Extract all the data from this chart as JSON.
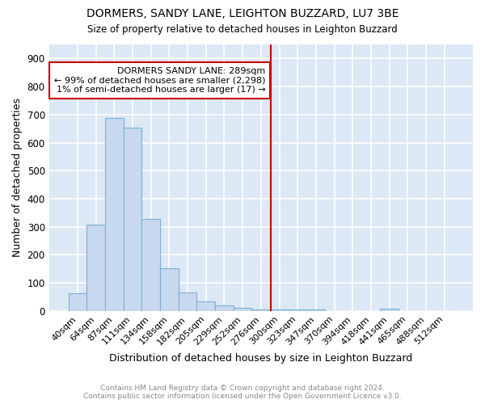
{
  "title": "DORMERS, SANDY LANE, LEIGHTON BUZZARD, LU7 3BE",
  "subtitle": "Size of property relative to detached houses in Leighton Buzzard",
  "xlabel": "Distribution of detached houses by size in Leighton Buzzard",
  "ylabel": "Number of detached properties",
  "footer": "Contains HM Land Registry data © Crown copyright and database right 2024.\nContains public sector information licensed under the Open Government Licence v3.0.",
  "bar_labels": [
    "40sqm",
    "64sqm",
    "87sqm",
    "111sqm",
    "134sqm",
    "158sqm",
    "182sqm",
    "205sqm",
    "229sqm",
    "252sqm",
    "276sqm",
    "300sqm",
    "323sqm",
    "347sqm",
    "370sqm",
    "394sqm",
    "418sqm",
    "441sqm",
    "465sqm",
    "488sqm",
    "512sqm"
  ],
  "bar_values": [
    62,
    309,
    687,
    654,
    327,
    151,
    65,
    33,
    20,
    11,
    5,
    4,
    4,
    4,
    0,
    0,
    0,
    8,
    0,
    0,
    0
  ],
  "bar_color": "#c8d8ee",
  "bar_edge_color": "#7ab0d8",
  "background_color": "#dce8f5",
  "grid_color": "#ffffff",
  "annotation_text": "DORMERS SANDY LANE: 289sqm\n← 99% of detached houses are smaller (2,298)\n1% of semi-detached houses are larger (17) →",
  "annotation_box_color": "#cc0000",
  "ylim": [
    0,
    950
  ],
  "yticks": [
    0,
    100,
    200,
    300,
    400,
    500,
    600,
    700,
    800,
    900
  ]
}
